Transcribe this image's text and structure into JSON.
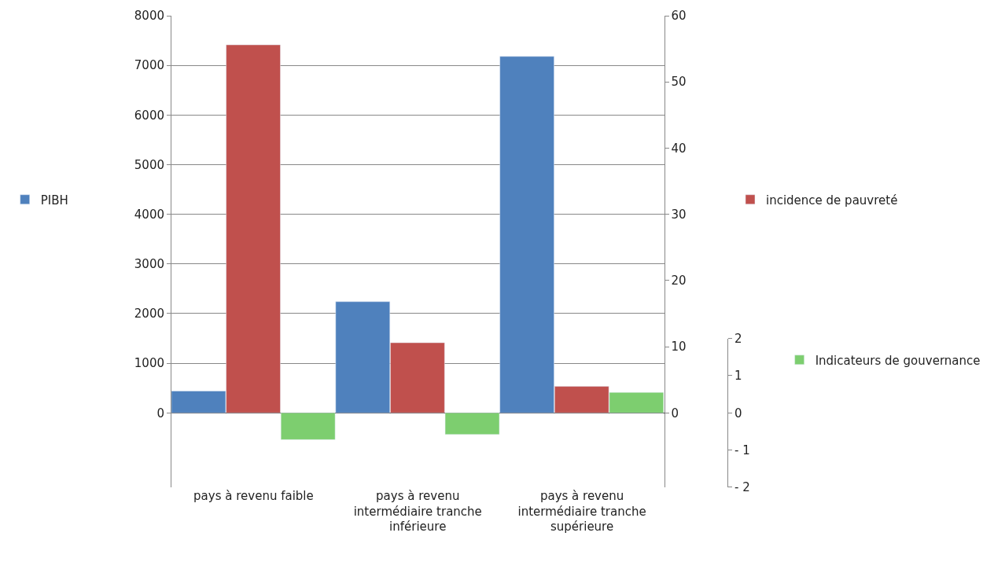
{
  "chart_data": {
    "type": "bar",
    "categories": [
      "pays à revenu faible",
      "pays à revenu intermédiaire tranche inférieure",
      "pays à revenu intermédiaire tranche supérieure"
    ],
    "series": [
      {
        "name": "PIBH",
        "color": "#4f81bd",
        "values": [
          440,
          2240,
          7180
        ]
      },
      {
        "name": "incidence de pauvreté",
        "color": "#c0504d",
        "axis": "y2",
        "values": [
          55.6,
          10.6,
          4.0
        ]
      },
      {
        "name": "Indicateurs de gouvernance",
        "color": "#7dce6f",
        "axis": "y3",
        "values": [
          -0.72,
          -0.58,
          0.55
        ]
      }
    ],
    "ylim": [
      -1500,
      8000
    ],
    "yticks": [
      0,
      1000,
      2000,
      3000,
      4000,
      5000,
      6000,
      7000,
      8000
    ],
    "y2lim": [
      -11.25,
      60
    ],
    "y2ticks": [
      0,
      10,
      20,
      30,
      40,
      50,
      60
    ],
    "y3lim": [
      -2,
      2
    ],
    "y3ticks": [
      2,
      1,
      0,
      {
        "value": -1,
        "label": "- 1"
      },
      {
        "value": -2,
        "label": "- 2"
      }
    ],
    "grid": "y",
    "legend": "right"
  }
}
